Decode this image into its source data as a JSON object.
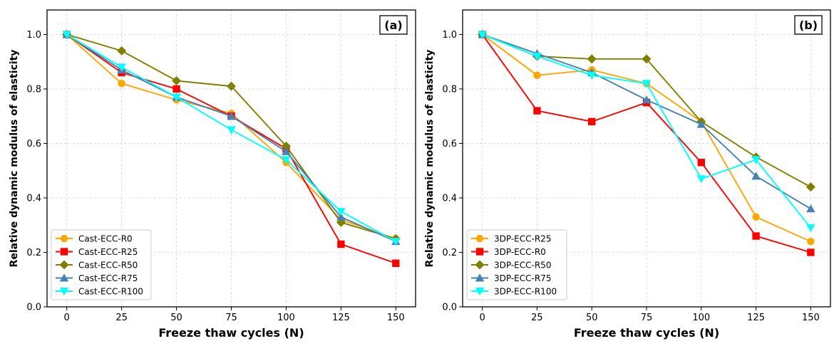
{
  "chart_data": [
    {
      "type": "line",
      "panel_label": "(a)",
      "xlabel": "Freeze thaw cycles (N)",
      "ylabel": "Relative dynamic modulus of elasticity",
      "x": [
        0,
        25,
        50,
        75,
        100,
        125,
        150
      ],
      "xticks": [
        "0",
        "25",
        "50",
        "75",
        "100",
        "125",
        "150"
      ],
      "yticks": [
        "0.0",
        "0.2",
        "0.4",
        "0.6",
        "0.8",
        "1.0"
      ],
      "xlim": [
        -9,
        159
      ],
      "ylim": [
        0.0,
        1.09
      ],
      "grid": true,
      "legend_position": "lower-left",
      "series": [
        {
          "name": "Cast-ECC-R0",
          "color": "#ffa500",
          "marker": "circle",
          "values": [
            1.0,
            0.82,
            0.76,
            0.71,
            0.53,
            0.32,
            0.25
          ]
        },
        {
          "name": "Cast-ECC-R25",
          "color": "#ff0000",
          "marker": "square",
          "values": [
            1.0,
            0.86,
            0.8,
            0.7,
            0.58,
            0.23,
            0.16
          ]
        },
        {
          "name": "Cast-ECC-R50",
          "color": "#808000",
          "marker": "diamond",
          "values": [
            1.0,
            0.94,
            0.83,
            0.81,
            0.59,
            0.31,
            0.25
          ]
        },
        {
          "name": "Cast-ECC-R75",
          "color": "#4682b4",
          "marker": "triangle-up",
          "values": [
            1.0,
            0.87,
            0.77,
            0.7,
            0.57,
            0.33,
            0.24
          ]
        },
        {
          "name": "Cast-ECC-R100",
          "color": "#00ffff",
          "marker": "triangle-down",
          "values": [
            1.0,
            0.88,
            0.77,
            0.65,
            0.54,
            0.35,
            0.24
          ]
        }
      ]
    },
    {
      "type": "line",
      "panel_label": "(b)",
      "xlabel": "Freeze thaw cycles (N)",
      "ylabel": "Relative dynamic modulus of elasticity",
      "x": [
        0,
        25,
        50,
        75,
        100,
        125,
        150
      ],
      "xticks": [
        "0",
        "25",
        "50",
        "75",
        "100",
        "125",
        "150"
      ],
      "yticks": [
        "0.0",
        "0.2",
        "0.4",
        "0.6",
        "0.8",
        "1.0"
      ],
      "xlim": [
        -9,
        159
      ],
      "ylim": [
        0.0,
        1.09
      ],
      "grid": true,
      "legend_position": "lower-left",
      "series": [
        {
          "name": "3DP-ECC-R25",
          "color": "#ffa500",
          "marker": "circle",
          "values": [
            1.0,
            0.85,
            0.87,
            0.82,
            0.68,
            0.33,
            0.24
          ]
        },
        {
          "name": "3DP-ECC-R0",
          "color": "#ff0000",
          "marker": "square",
          "values": [
            1.0,
            0.72,
            0.68,
            0.75,
            0.53,
            0.26,
            0.2
          ]
        },
        {
          "name": "3DP-ECC-R50",
          "color": "#808000",
          "marker": "diamond",
          "values": [
            1.0,
            0.92,
            0.91,
            0.91,
            0.68,
            0.55,
            0.44
          ]
        },
        {
          "name": "3DP-ECC-R75",
          "color": "#4682b4",
          "marker": "triangle-up",
          "values": [
            1.0,
            0.93,
            0.86,
            0.76,
            0.67,
            0.48,
            0.36
          ]
        },
        {
          "name": "3DP-ECC-R100",
          "color": "#00ffff",
          "marker": "triangle-down",
          "values": [
            1.0,
            0.92,
            0.85,
            0.82,
            0.47,
            0.54,
            0.29
          ]
        }
      ]
    }
  ]
}
